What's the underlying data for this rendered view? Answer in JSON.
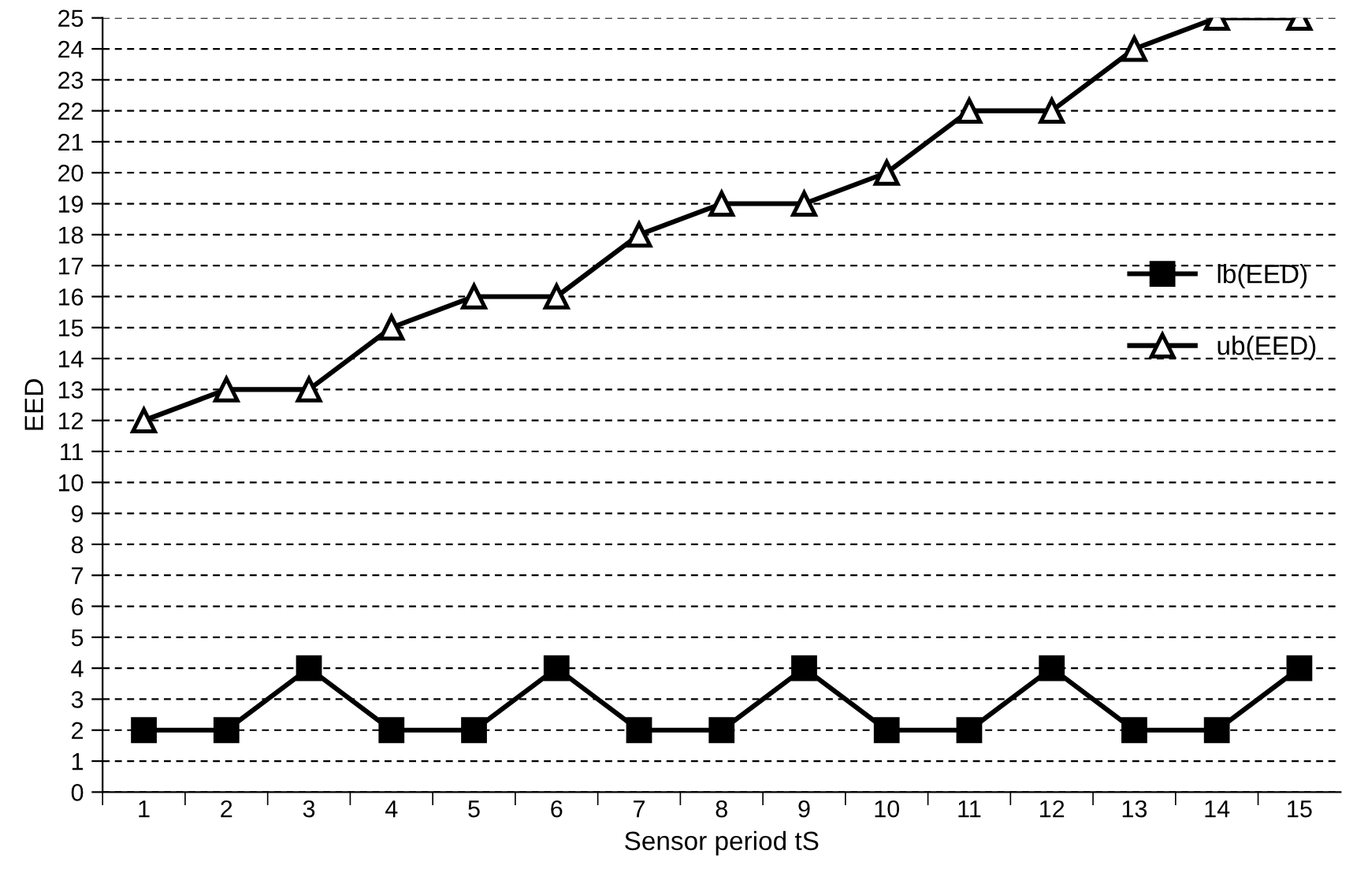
{
  "chart_data": {
    "type": "line",
    "xlabel": "Sensor period tS",
    "ylabel": "EED",
    "categories": [
      "1",
      "2",
      "3",
      "4",
      "5",
      "6",
      "7",
      "8",
      "9",
      "10",
      "11",
      "12",
      "13",
      "14",
      "15"
    ],
    "series": [
      {
        "name": "lb(EED)",
        "color": "#000000",
        "marker": "square",
        "values": [
          2,
          2,
          4,
          2,
          2,
          4,
          2,
          2,
          4,
          2,
          2,
          4,
          2,
          2,
          4
        ]
      },
      {
        "name": "ub(EED)",
        "color": "#000000",
        "marker": "triangle",
        "values": [
          12,
          13,
          13,
          15,
          16,
          16,
          18,
          19,
          19,
          20,
          22,
          22,
          24,
          25,
          25
        ]
      }
    ],
    "ylim": [
      0,
      25
    ],
    "yticks": [
      0,
      1,
      2,
      3,
      4,
      5,
      6,
      7,
      8,
      9,
      10,
      11,
      12,
      13,
      14,
      15,
      16,
      17,
      18,
      19,
      20,
      21,
      22,
      23,
      24,
      25
    ],
    "grid": "y",
    "legend": "right",
    "line_style": "solid"
  }
}
